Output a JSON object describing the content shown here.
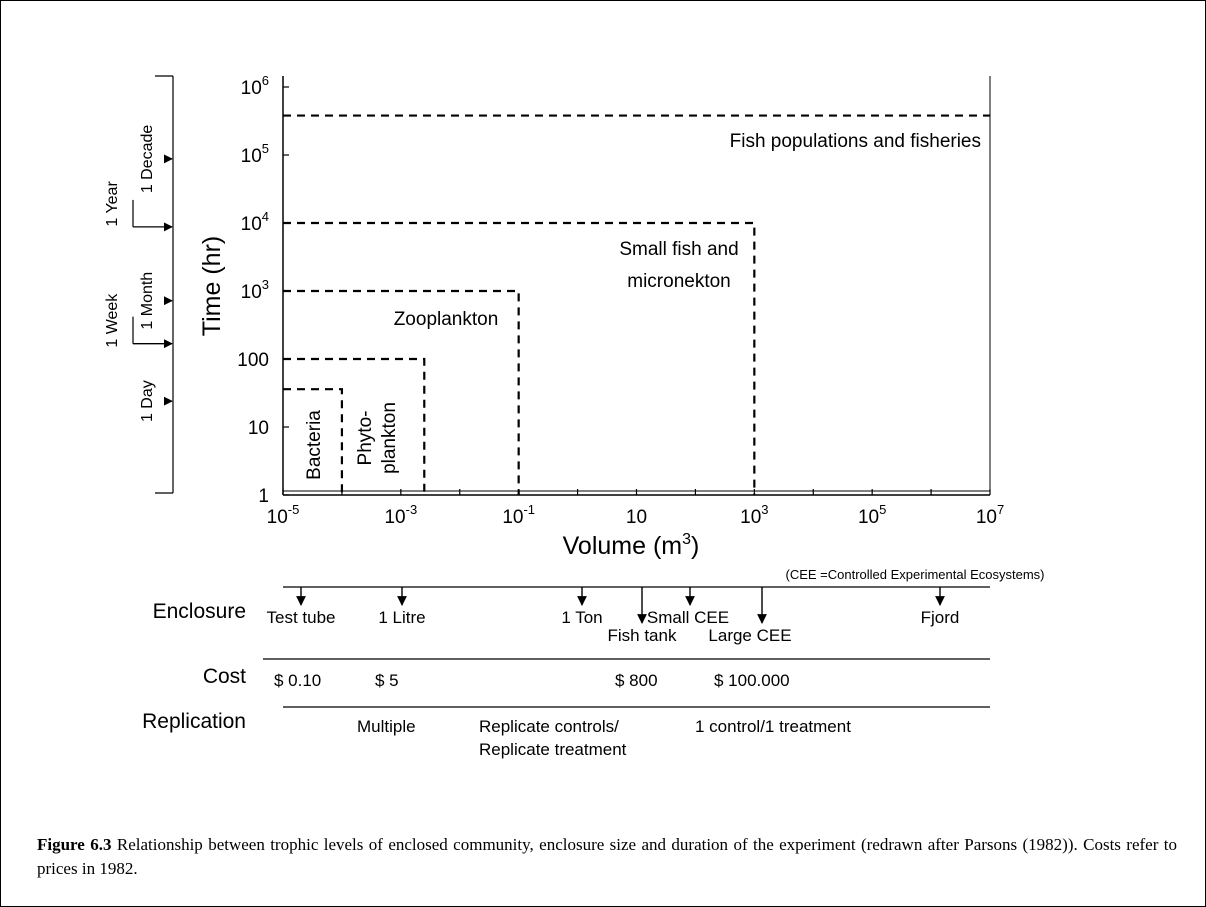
{
  "chart_data": {
    "type": "area",
    "xscale": "log",
    "yscale": "log",
    "xlim": [
      1e-05,
      10000000
    ],
    "ylim": [
      1,
      1000000
    ],
    "xlabel": "Volume (m³)",
    "ylabel": "Time (hr)",
    "x_ticks": [
      {
        "base": "10",
        "exp": "-5",
        "value": 1e-05
      },
      {
        "base": "10",
        "exp": "-3",
        "value": 0.001
      },
      {
        "base": "10",
        "exp": "-1",
        "value": 0.1
      },
      {
        "base": "10",
        "exp": "",
        "value": 10
      },
      {
        "base": "10",
        "exp": "3",
        "value": 1000
      },
      {
        "base": "10",
        "exp": "5",
        "value": 100000
      },
      {
        "base": "10",
        "exp": "7",
        "value": 10000000
      }
    ],
    "y_ticks": [
      {
        "base": "1",
        "exp": "",
        "value": 1
      },
      {
        "base": "10",
        "exp": "",
        "value": 10
      },
      {
        "base": "100",
        "exp": "",
        "value": 100
      },
      {
        "base": "10",
        "exp": "3",
        "value": 1000
      },
      {
        "base": "10",
        "exp": "4",
        "value": 10000
      },
      {
        "base": "10",
        "exp": "5",
        "value": 100000
      },
      {
        "base": "10",
        "exp": "6",
        "value": 1000000
      }
    ],
    "series": [
      {
        "name": "Bacteria",
        "x_max": 0.0001,
        "y_max": 36
      },
      {
        "name": "Phyto-plankton",
        "x_max": 0.0025,
        "y_max": 100
      },
      {
        "name": "Zooplankton",
        "x_max": 0.1,
        "y_max": 1000
      },
      {
        "name": "Small fish and micronekton",
        "x_max": 1000,
        "y_max": 10000
      },
      {
        "name": "Fish populations and fisheries",
        "x_max": 10000000,
        "y_max": 380000
      }
    ],
    "time_scale": [
      {
        "label": "1 Day",
        "hours": 24
      },
      {
        "label": "1 Week",
        "hours": 168
      },
      {
        "label": "1 Month",
        "hours": 720
      },
      {
        "label": "1 Year",
        "hours": 8760
      },
      {
        "label": "1 Decade",
        "hours": 87600
      }
    ],
    "enclosures": [
      {
        "name": "Test tube",
        "volume": 1e-05,
        "label_row": 0
      },
      {
        "name": "1 Litre",
        "volume": 0.001,
        "label_row": 0
      },
      {
        "name": "1 Ton",
        "volume": 1,
        "label_row": 0
      },
      {
        "name": "Fish tank",
        "volume": 5,
        "label_row": 1
      },
      {
        "name": "Small CEE",
        "volume": 50,
        "label_row": 0
      },
      {
        "name": "Large CEE",
        "volume": 1000,
        "label_row": 1
      },
      {
        "name": "Fjord",
        "volume": 10000000,
        "label_row": 0
      }
    ],
    "note": "(CEE =Controlled Experimental Ecosystems)",
    "costs": [
      "$ 0.10",
      "$ 5",
      "$ 800",
      "$ 100.000"
    ],
    "replication": [
      "Multiple",
      "Replicate controls/",
      "Replicate treatment",
      "1 control/1 treatment"
    ],
    "row_labels": {
      "enclosure": "Enclosure",
      "cost": "Cost",
      "replication": "Replication"
    }
  },
  "caption": {
    "label": "Figure 6.3",
    "text": " Relationship between trophic levels of enclosed community, enclosure size and duration of the experiment (redrawn after Parsons (1982)). Costs refer to prices in 1982."
  }
}
